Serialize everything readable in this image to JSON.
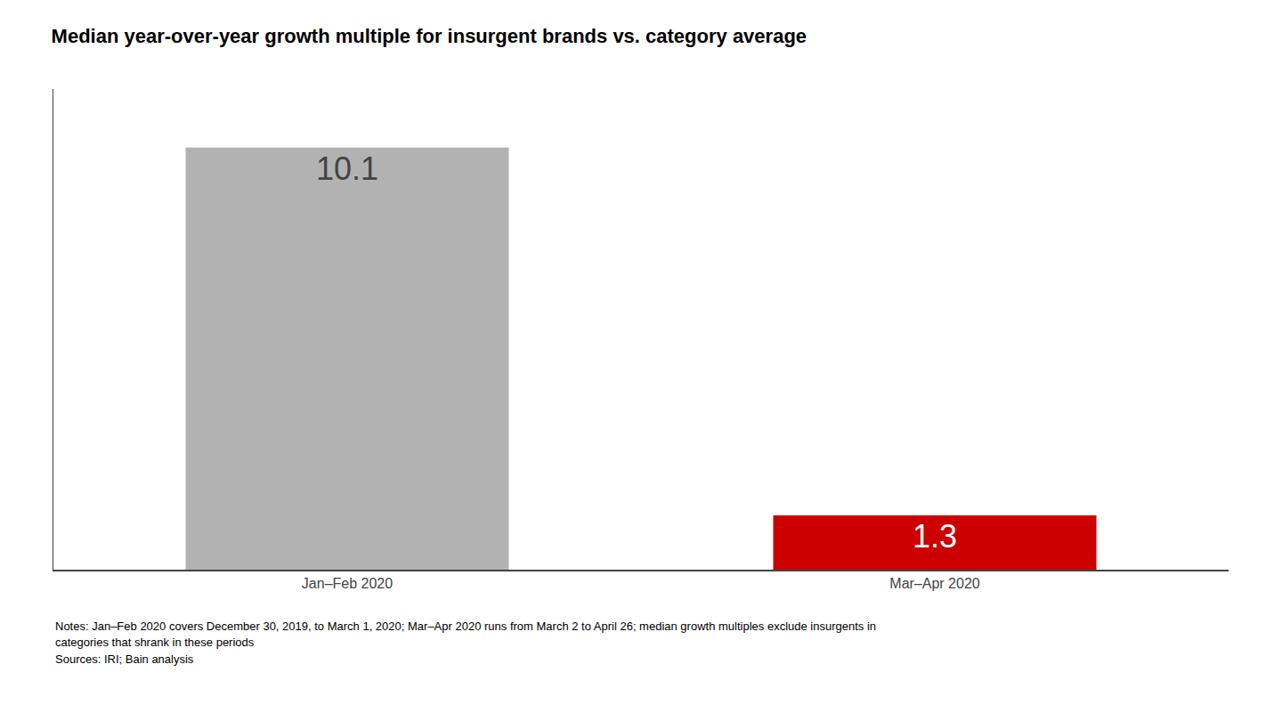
{
  "chart_data": {
    "type": "bar",
    "title": "Median year-over-year growth multiple for insurgent brands vs. category average",
    "categories": [
      "Jan–Feb 2020",
      "Mar–Apr 2020"
    ],
    "values": [
      10.1,
      1.3
    ],
    "colors": [
      "#b2b2b2",
      "#cc0000"
    ],
    "ylim": [
      0,
      11.5
    ],
    "yticks": [],
    "data_labels": true,
    "tick_labels": "x",
    "grid": false,
    "annotations": [
      "Notes: Jan–Feb 2020 covers December 30, 2019, to March 1, 2020; Mar–Apr 2020 runs from March 2 to April 26; median growth multiples exclude insurgents in",
      "categories that shrank in these periods",
      "Sources: IRI; Bain analysis"
    ]
  }
}
